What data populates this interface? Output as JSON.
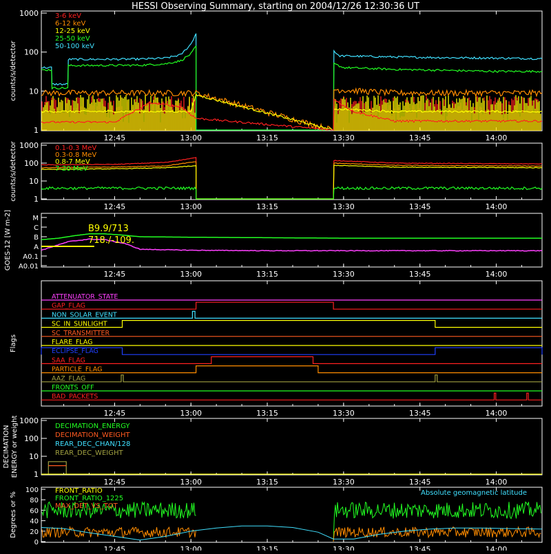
{
  "title": "HESSI Observing Summary, starting on 2004/12/26 12:30:36 UT",
  "colors": {
    "bg": "#000000",
    "axis": "#ffffff",
    "red": "#ff2020",
    "orange": "#ff8c00",
    "yellow": "#ffff00",
    "green": "#22ff22",
    "cyan": "#40e0ff",
    "magenta": "#ff40ff",
    "blue": "#2040ff",
    "olive": "#a0a040",
    "lightgreen": "#60ff60",
    "orangered": "#ff5a20"
  },
  "time_axis": {
    "start": "12:30:36",
    "end": "14:12:00",
    "tick_labels": [
      "12:45",
      "13:00",
      "13:15",
      "13:30",
      "13:45",
      "14:00"
    ],
    "tick_minutes": [
      45,
      60,
      75,
      90,
      105,
      120
    ]
  },
  "chart_data": [
    {
      "id": "panel1",
      "type": "line",
      "ylabel": "counts/s/detector",
      "y_scale": "log",
      "ylim": [
        1,
        1000
      ],
      "tick_labels": [
        "1",
        "10",
        "100",
        "1000"
      ],
      "legend": [
        "3-6 keV",
        "6-12 keV",
        "12-25 keV",
        "25-50 keV",
        "50-100 keV"
      ],
      "legend_colors": [
        "red",
        "orange",
        "yellow",
        "green",
        "cyan"
      ],
      "data_gap_minutes": [
        61.0,
        88.0
      ],
      "series": [
        {
          "name": "50-100 keV",
          "color": "cyan",
          "x": [
            30.6,
            32.6,
            32.7,
            35.8,
            35.9,
            50,
            55,
            58,
            60,
            61.0,
            61.0,
            88.0,
            88.1,
            89,
            100,
            110,
            120,
            129
          ],
          "y": [
            40,
            40,
            15,
            15,
            65,
            66,
            70,
            85,
            160,
            300,
            1,
            1,
            110,
            80,
            75,
            72,
            70,
            68
          ]
        },
        {
          "name": "25-50 keV",
          "color": "green",
          "x": [
            30.6,
            32.6,
            32.7,
            35.8,
            35.9,
            50,
            55,
            58,
            60,
            61.0,
            61.0,
            88.0,
            88.1,
            90,
            100,
            110,
            120,
            129
          ],
          "y": [
            35,
            35,
            12,
            12,
            45,
            46,
            50,
            60,
            90,
            140,
            1,
            1,
            50,
            40,
            36,
            34,
            32,
            32
          ]
        },
        {
          "name": "6-12 keV",
          "color": "orange",
          "x": [
            30.6,
            45,
            60,
            61.0,
            88.0,
            88.1,
            100,
            129
          ],
          "y": [
            9,
            9,
            9,
            9,
            1,
            11,
            9,
            9
          ]
        },
        {
          "name": "12-25 keV",
          "color": "yellow",
          "x": [
            30.6,
            45,
            60,
            61.0,
            88.0,
            88.1,
            100,
            129
          ],
          "y": [
            3,
            3,
            3,
            8,
            1,
            3.5,
            3,
            3
          ]
        },
        {
          "name": "3-6 keV",
          "color": "red",
          "x": [
            30.6,
            45,
            52,
            58,
            61.0,
            88.0,
            88.1,
            92,
            100,
            129
          ],
          "y": [
            1.6,
            1.6,
            5,
            4,
            2,
            1,
            6,
            3,
            1.7,
            1.7
          ]
        }
      ]
    },
    {
      "id": "panel2",
      "type": "line",
      "ylabel": "counts/s/detector",
      "y_scale": "log",
      "ylim": [
        1,
        1000
      ],
      "tick_labels": [
        "1",
        "10",
        "100",
        "1000"
      ],
      "legend": [
        "0.1-0.3 MeV",
        "0.3-0.8 MeV",
        "0.8-7 MeV",
        "7-20 MeV"
      ],
      "legend_colors": [
        "red",
        "orange",
        "yellow",
        "green"
      ],
      "series": [
        {
          "name": "0.1-0.3 MeV",
          "color": "red",
          "x": [
            30.6,
            45,
            55,
            61.0,
            61.0,
            88.0,
            88.1,
            100,
            129
          ],
          "y": [
            80,
            85,
            110,
            200,
            1,
            1,
            140,
            100,
            90
          ]
        },
        {
          "name": "0.3-0.8 MeV",
          "color": "orange",
          "x": [
            30.6,
            45,
            55,
            61.0,
            61.0,
            88.0,
            88.1,
            100,
            129
          ],
          "y": [
            55,
            60,
            70,
            120,
            1,
            1,
            100,
            75,
            68
          ]
        },
        {
          "name": "0.8-7 MeV",
          "color": "yellow",
          "x": [
            30.6,
            45,
            55,
            61.0,
            61.0,
            88.0,
            88.1,
            100,
            129
          ],
          "y": [
            45,
            48,
            55,
            70,
            1,
            1,
            75,
            60,
            55
          ]
        },
        {
          "name": "7-20 MeV",
          "color": "green",
          "x": [
            30.6,
            45,
            61.0,
            61.0,
            88.0,
            88.1,
            129
          ],
          "y": [
            4,
            4,
            4,
            1,
            1,
            4,
            4
          ]
        }
      ]
    },
    {
      "id": "panel3",
      "type": "line",
      "ylabel": "GOES-12 [W m-2]",
      "tick_labels": [
        "A0.01",
        "A0.1",
        "A",
        "B",
        "C",
        "M"
      ],
      "annotations": [
        "B9.9/713",
        "718./-109."
      ],
      "series": [
        {
          "name": "long",
          "color": "green",
          "x": [
            30.6,
            34,
            37,
            40,
            43,
            46,
            50,
            60,
            75,
            90,
            105,
            120,
            129
          ],
          "y": [
            0.7,
            0.85,
            1.1,
            1.3,
            1.3,
            1.2,
            1.0,
            0.95,
            0.9,
            0.85,
            0.85,
            0.85,
            0.85
          ]
        },
        {
          "name": "short",
          "color": "magenta",
          "x": [
            30.6,
            33,
            36,
            40,
            43,
            47,
            50,
            60,
            75,
            90,
            105,
            120,
            129
          ],
          "y": [
            -0.4,
            0.0,
            0.5,
            0.75,
            0.7,
            0.3,
            -0.3,
            -0.4,
            -0.45,
            -0.45,
            -0.45,
            -0.45,
            -0.45
          ]
        },
        {
          "name": "threshold",
          "color": "yellow",
          "x": [
            30.6,
            41
          ],
          "y": [
            0.0,
            0.0
          ]
        }
      ]
    },
    {
      "id": "panel4",
      "type": "line",
      "ylabel": "Flags",
      "flags": [
        {
          "label": "ATTENUATOR_STATE",
          "color": "magenta",
          "steps": []
        },
        {
          "label": "GAP_FLAG",
          "color": "red",
          "steps": [
            [
              61.0,
              88.0
            ]
          ]
        },
        {
          "label": "NON_SOLAR_EVENT",
          "color": "cyan",
          "steps": [
            [
              60.3,
              60.8
            ]
          ]
        },
        {
          "label": "SC_IN_SUNLIGHT",
          "color": "yellow",
          "steps": [
            [
              46.5,
              108.0
            ]
          ]
        },
        {
          "label": "SC_TRANSMITTER",
          "color": "orangered",
          "steps": []
        },
        {
          "label": "FLARE_FLAG",
          "color": "yellow",
          "steps": []
        },
        {
          "label": "ECLIPSE_FLAG",
          "color": "blue",
          "steps": [
            [
              30.6,
              46.5
            ],
            [
              108.0,
              129
            ]
          ]
        },
        {
          "label": "SAA_FLAG",
          "color": "red",
          "steps": [
            [
              64.0,
              84.0
            ]
          ]
        },
        {
          "label": "PARTICLE_FLAG",
          "color": "orange",
          "steps": [
            [
              61.0,
              85.0
            ]
          ]
        },
        {
          "label": "AAZ_FLAG",
          "color": "olive",
          "steps": [
            [
              46.3,
              46.7
            ],
            [
              108.0,
              108.4
            ]
          ]
        },
        {
          "label": "FRONTS_OFF",
          "color": "green",
          "steps": []
        },
        {
          "label": "BAD_PACKETS",
          "color": "red",
          "steps": [
            [
              119.6,
              119.9
            ],
            [
              126.0,
              126.3
            ]
          ]
        }
      ]
    },
    {
      "id": "panel5",
      "type": "line",
      "ylabel": "DECIMATION ENERGY or weight",
      "y_scale": "log",
      "ylim": [
        1,
        1000
      ],
      "tick_labels": [
        "1",
        "10",
        "100",
        "1000"
      ],
      "legend": [
        "DECIMATION_ENERGY",
        "DECIMATION_WEIGHT",
        "REAR_DEC_CHAN/128",
        "REAR_DEC_WEIGHT"
      ],
      "legend_colors": [
        "green",
        "orangered",
        "cyan",
        "olive"
      ],
      "series": [
        {
          "name": "REAR_DEC_WEIGHT",
          "color": "olive",
          "x": [
            32.0,
            32.0,
            35.5,
            35.5
          ],
          "y": [
            1,
            5,
            5,
            1
          ]
        },
        {
          "name": "DECIMATION_WEIGHT",
          "color": "orangered",
          "x": [
            32.0,
            35.5
          ],
          "y": [
            3,
            3
          ]
        },
        {
          "name": "baseline",
          "color": "yellow",
          "x": [
            30.6,
            129
          ],
          "y": [
            1,
            1
          ]
        }
      ]
    },
    {
      "id": "panel6",
      "type": "line",
      "ylabel": "Degrees or %",
      "ylim": [
        0,
        100
      ],
      "tick_labels": [
        "0",
        "20",
        "40",
        "60",
        "80",
        "100"
      ],
      "legend": [
        "FRONT_RATIO",
        "FRONT_RATIO_1225",
        "MAX_DET_VS_TOT"
      ],
      "legend_colors": [
        "yellow",
        "green",
        "orangered"
      ],
      "annotation": "Absolute geomagnetic latitude",
      "annotation_color": "cyan",
      "series": [
        {
          "name": "FRONT_RATIO_1225",
          "color": "green",
          "level": 60,
          "noise": 16
        },
        {
          "name": "MAX_DET_VS_TOT",
          "color": "orange",
          "level": 18,
          "noise": 10
        },
        {
          "name": "Absolute geomagnetic latitude",
          "color": "cyan",
          "x": [
            30.6,
            35,
            40,
            45,
            50,
            55,
            60,
            65,
            70,
            75,
            80,
            85,
            88,
            92,
            97,
            102,
            107,
            112,
            117,
            122,
            129
          ],
          "y": [
            27,
            25,
            17,
            10,
            3,
            10,
            20,
            26,
            30,
            30,
            27,
            18,
            5,
            5,
            14,
            20,
            24,
            26,
            26,
            25,
            24
          ]
        }
      ]
    }
  ]
}
